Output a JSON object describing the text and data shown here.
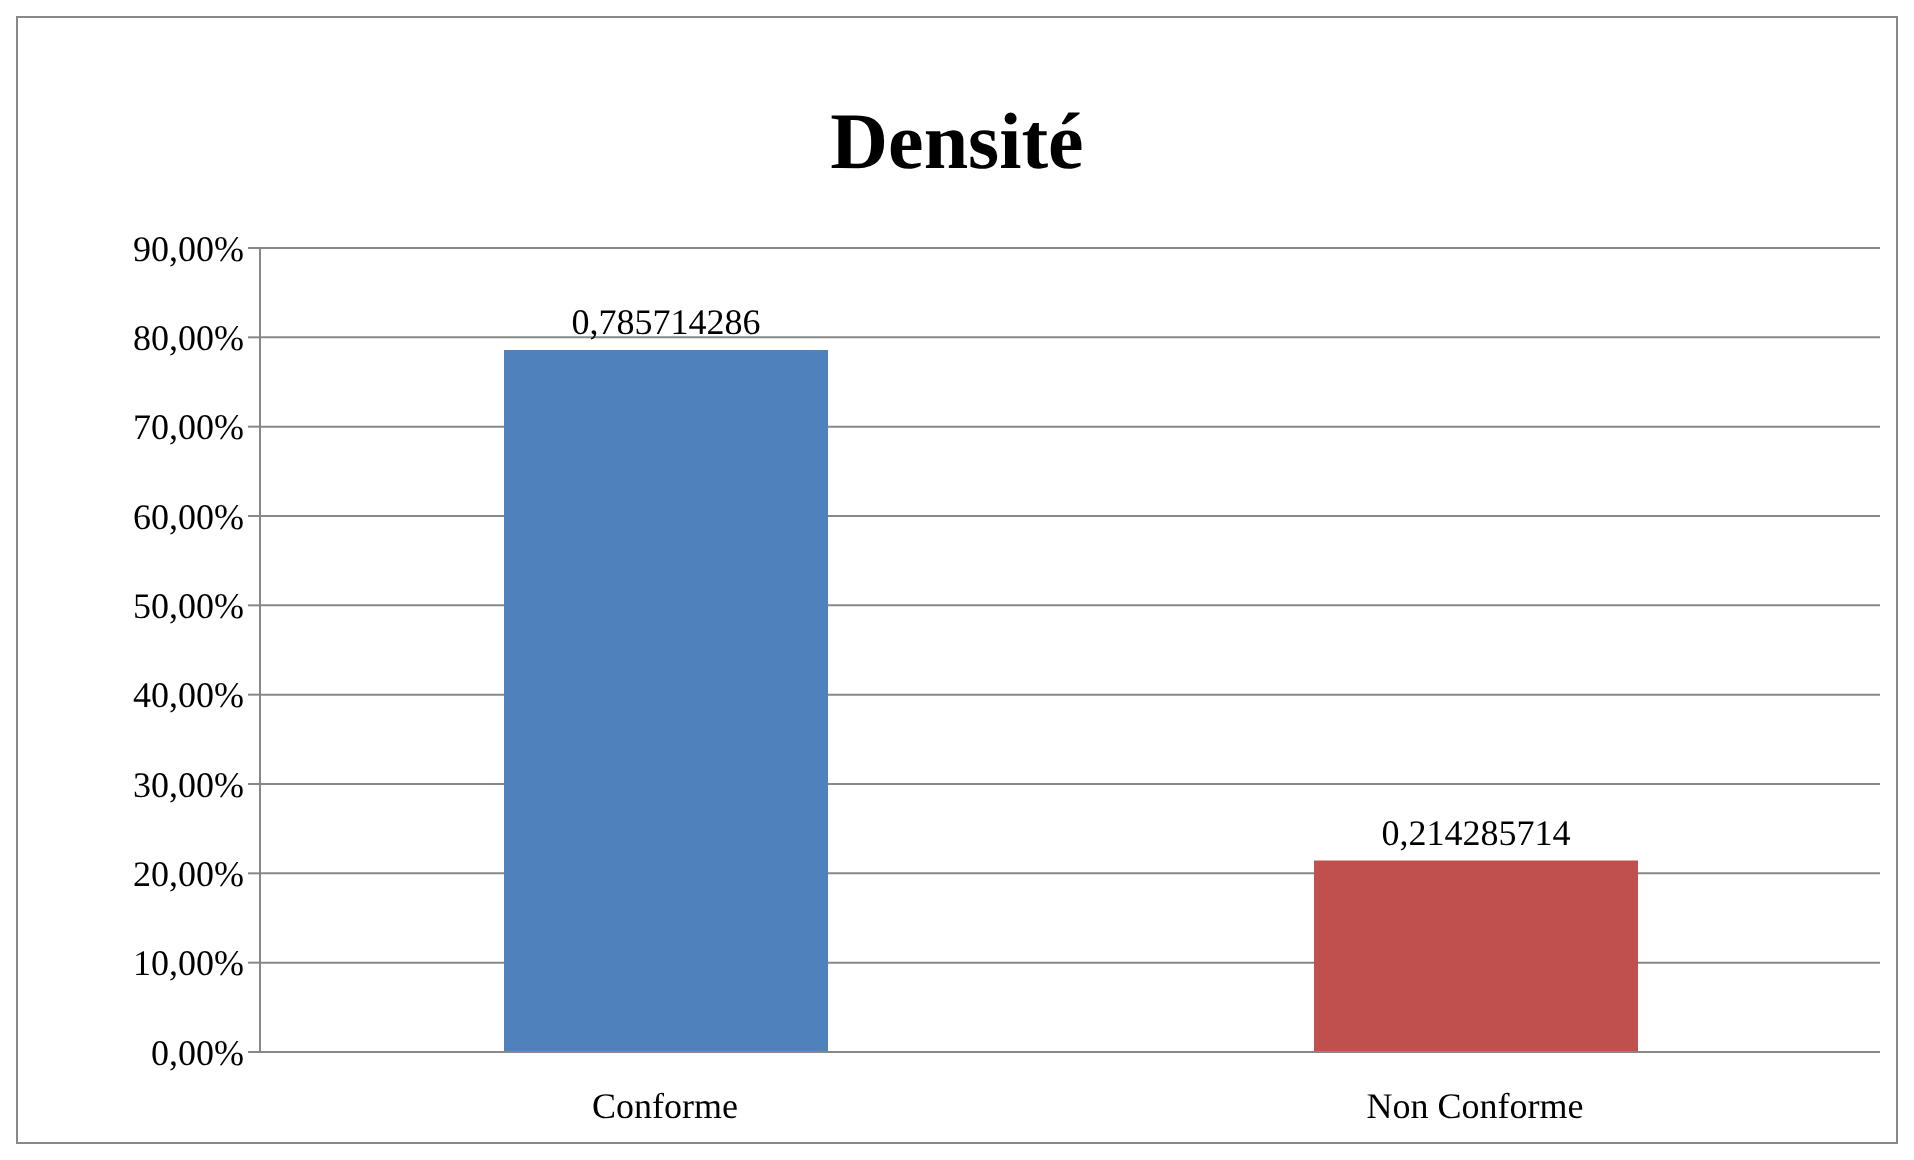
{
  "chart_data": {
    "type": "bar",
    "title": "Densité",
    "categories": [
      "Conforme",
      "Non Conforme"
    ],
    "values": [
      0.785714286,
      0.214285714
    ],
    "colors": [
      "#4f81bd",
      "#c0504d"
    ],
    "value_labels": [
      "0,785714286",
      "0,214285714"
    ],
    "ylim": [
      0,
      0.9
    ],
    "yticks": [
      {
        "value": 0,
        "label": "0,00%"
      },
      {
        "value": 0.1,
        "label": "10,00%"
      },
      {
        "value": 0.2,
        "label": "20,00%"
      },
      {
        "value": 0.3,
        "label": "30,00%"
      },
      {
        "value": 0.4,
        "label": "40,00%"
      },
      {
        "value": 0.5,
        "label": "50,00%"
      },
      {
        "value": 0.6,
        "label": "60,00%"
      },
      {
        "value": 0.7,
        "label": "70,00%"
      },
      {
        "value": 0.8,
        "label": "80,00%"
      },
      {
        "value": 0.9,
        "label": "90,00%"
      }
    ],
    "grid": "y",
    "legend": false
  }
}
